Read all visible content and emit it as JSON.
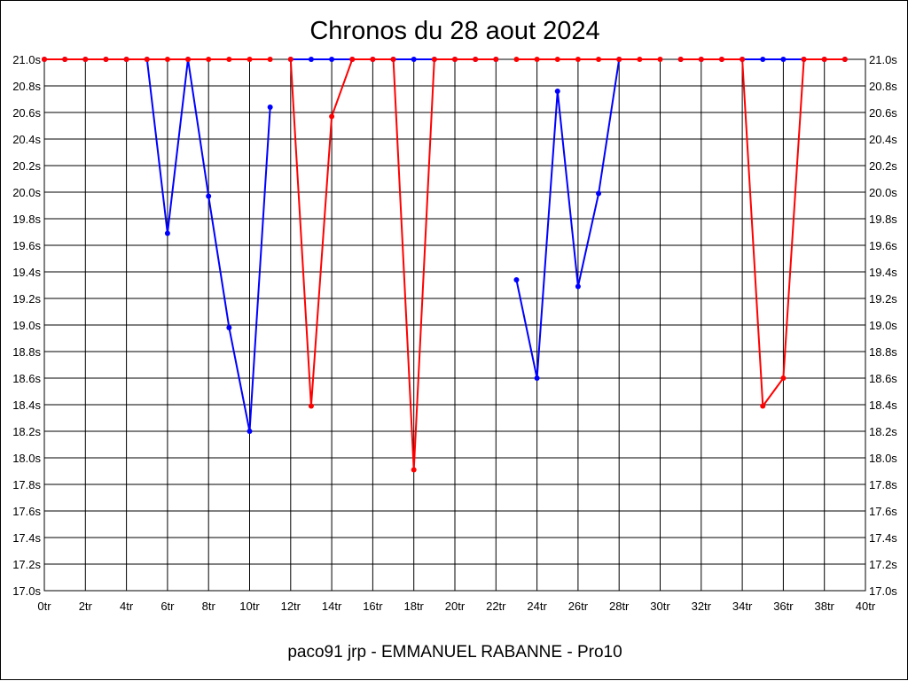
{
  "chart_data": {
    "type": "line",
    "title": "Chronos du 28 aout 2024",
    "footer": "paco91 jrp - EMMANUEL RABANNE - Pro10",
    "xlim": [
      0,
      40
    ],
    "ylim": [
      17.0,
      21.0
    ],
    "x_ticks": [
      "0tr",
      "2tr",
      "4tr",
      "6tr",
      "8tr",
      "10tr",
      "12tr",
      "14tr",
      "16tr",
      "18tr",
      "20tr",
      "22tr",
      "24tr",
      "26tr",
      "28tr",
      "30tr",
      "32tr",
      "34tr",
      "36tr",
      "38tr",
      "40tr"
    ],
    "y_ticks": [
      "17.0s",
      "17.2s",
      "17.4s",
      "17.6s",
      "17.8s",
      "18.0s",
      "18.2s",
      "18.4s",
      "18.6s",
      "18.8s",
      "19.0s",
      "19.2s",
      "19.4s",
      "19.6s",
      "19.8s",
      "20.0s",
      "20.2s",
      "20.4s",
      "20.6s",
      "20.8s",
      "21.0s"
    ],
    "grid": true,
    "series": [
      {
        "color": "#0000ff",
        "segments": [
          [
            [
              0,
              21.0
            ],
            [
              1,
              21.0
            ],
            [
              2,
              21.0
            ],
            [
              3,
              21.0
            ],
            [
              4,
              21.0
            ],
            [
              5,
              21.0
            ],
            [
              6,
              19.69
            ],
            [
              7,
              21.0
            ],
            [
              8,
              19.97
            ],
            [
              9,
              18.98
            ],
            [
              10,
              18.2
            ],
            [
              11,
              20.64
            ]
          ],
          [
            [
              12,
              21.0
            ],
            [
              13,
              21.0
            ],
            [
              14,
              21.0
            ],
            [
              15,
              21.0
            ],
            [
              16,
              21.0
            ],
            [
              17,
              21.0
            ],
            [
              18,
              21.0
            ],
            [
              19,
              21.0
            ],
            [
              20,
              21.0
            ],
            [
              21,
              21.0
            ],
            [
              22,
              21.0
            ]
          ],
          [
            [
              23,
              19.34
            ],
            [
              24,
              18.6
            ],
            [
              25,
              20.76
            ],
            [
              26,
              19.29
            ],
            [
              27,
              19.99
            ],
            [
              28,
              21.0
            ]
          ],
          [
            [
              31,
              21.0
            ],
            [
              32,
              21.0
            ],
            [
              33,
              21.0
            ],
            [
              34,
              21.0
            ],
            [
              35,
              21.0
            ],
            [
              36,
              21.0
            ],
            [
              37,
              21.0
            ],
            [
              38,
              21.0
            ],
            [
              39,
              21.0
            ]
          ]
        ]
      },
      {
        "color": "#ff0000",
        "segments": [
          [
            [
              0,
              21.0
            ],
            [
              1,
              21.0
            ],
            [
              2,
              21.0
            ],
            [
              3,
              21.0
            ],
            [
              4,
              21.0
            ],
            [
              5,
              21.0
            ],
            [
              6,
              21.0
            ],
            [
              7,
              21.0
            ],
            [
              8,
              21.0
            ],
            [
              9,
              21.0
            ],
            [
              10,
              21.0
            ],
            [
              11,
              21.0
            ]
          ],
          [
            [
              12,
              21.0
            ],
            [
              13,
              18.39
            ],
            [
              14,
              20.57
            ],
            [
              15,
              21.0
            ],
            [
              16,
              21.0
            ],
            [
              17,
              21.0
            ],
            [
              18,
              17.91
            ],
            [
              19,
              21.0
            ],
            [
              20,
              21.0
            ],
            [
              21,
              21.0
            ],
            [
              22,
              21.0
            ]
          ],
          [
            [
              23,
              21.0
            ],
            [
              24,
              21.0
            ],
            [
              25,
              21.0
            ],
            [
              26,
              21.0
            ],
            [
              27,
              21.0
            ],
            [
              28,
              21.0
            ],
            [
              29,
              21.0
            ],
            [
              30,
              21.0
            ]
          ],
          [
            [
              31,
              21.0
            ],
            [
              32,
              21.0
            ],
            [
              33,
              21.0
            ],
            [
              34,
              21.0
            ],
            [
              35,
              18.39
            ],
            [
              36,
              18.6
            ],
            [
              37,
              21.0
            ],
            [
              38,
              21.0
            ],
            [
              39,
              21.0
            ]
          ]
        ]
      }
    ]
  }
}
